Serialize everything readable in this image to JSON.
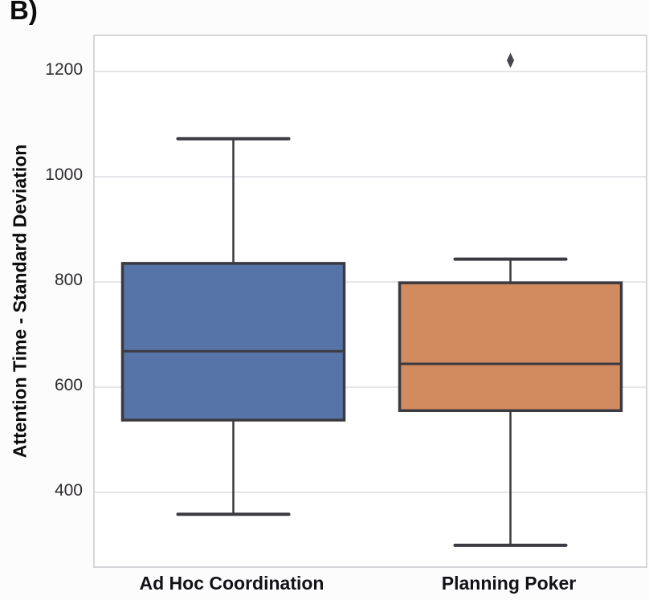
{
  "panel_label": "B)",
  "colors": {
    "box_blue": "#5674a8",
    "box_orange": "#d28a5f",
    "line_dark": "#3a3a40",
    "gridline": "#e7e5e9",
    "plot_border": "#d7d5d9",
    "plot_background": "#ffffff"
  },
  "chart_data": {
    "type": "box",
    "title": "",
    "xlabel": "",
    "ylabel": "Attention Time - Standard Deviation",
    "categories": [
      "Ad Hoc Coordination",
      "Planning Poker"
    ],
    "yticks": [
      400,
      600,
      800,
      1000,
      1200
    ],
    "ylim": [
      253,
      1267
    ],
    "grid": true,
    "legend": "none",
    "series": [
      {
        "name": "Ad Hoc Coordination",
        "color": "#5674a8",
        "whislo": 358,
        "q1": 537,
        "med": 668,
        "q3": 835,
        "whishi": 1072,
        "fliers": []
      },
      {
        "name": "Planning Poker",
        "color": "#d28a5f",
        "whislo": 299,
        "q1": 555,
        "med": 644,
        "q3": 798,
        "whishi": 843,
        "fliers": [
          1221
        ]
      }
    ]
  }
}
